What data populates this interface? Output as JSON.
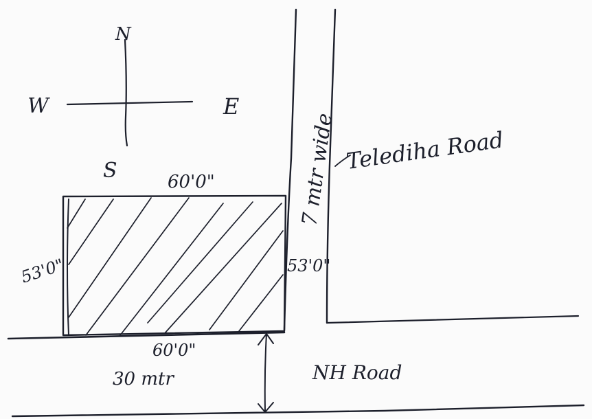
{
  "compass": {
    "north": "N",
    "south": "S",
    "east": "E",
    "west": "W"
  },
  "plot": {
    "top_dimension": "60'0\"",
    "bottom_dimension": "60'0\"",
    "left_dimension": "53'0\"",
    "right_dimension": "53'0\""
  },
  "side_road": {
    "width_label": "7 mtr wide",
    "name": "Telediha Road"
  },
  "main_road": {
    "width_label": "30 mtr",
    "name": "NH Road"
  },
  "colors": {
    "ink": "#1c1f2b",
    "paper": "#fbfbfb"
  }
}
